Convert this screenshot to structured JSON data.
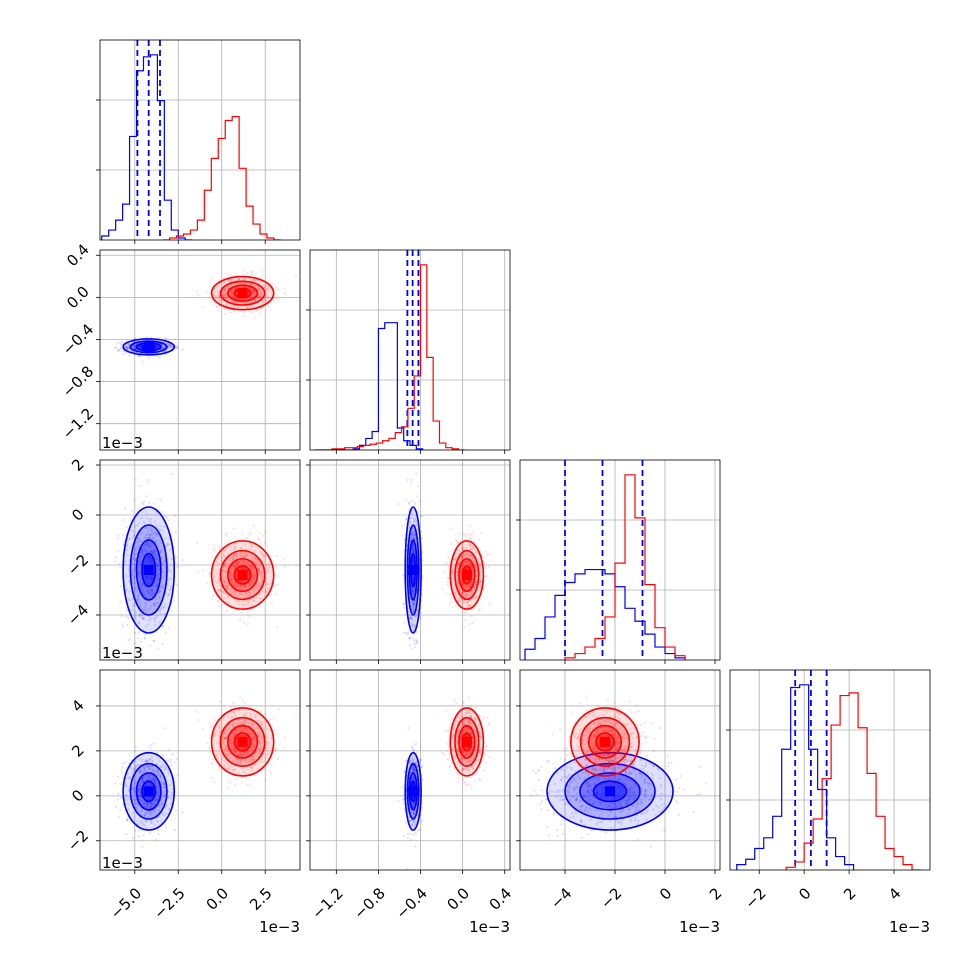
{
  "chart_data": {
    "type": "corner",
    "grid": true,
    "colors": {
      "a": "#0000ff",
      "b": "#ff0000"
    },
    "params": [
      {
        "lim": [
          -0.007,
          0.0045
        ],
        "ticks": [
          {
            "v": -0.005,
            "l": "−5.0"
          },
          {
            "v": -0.0025,
            "l": "−2.5"
          },
          {
            "v": 0.0,
            "l": "0.0"
          },
          {
            "v": 0.0025,
            "l": "2.5"
          }
        ],
        "offset": "1e−3"
      },
      {
        "lim": [
          -0.00145,
          0.00045
        ],
        "ticks": [
          {
            "v": -0.0012,
            "l": "−1.2"
          },
          {
            "v": -0.0008,
            "l": "−0.8"
          },
          {
            "v": -0.0004,
            "l": "−0.4"
          },
          {
            "v": 0.0,
            "l": "0.0"
          },
          {
            "v": 0.0004,
            "l": "0.4"
          }
        ],
        "offset": "1e−3"
      },
      {
        "lim": [
          -0.0058,
          0.0022
        ],
        "ticks": [
          {
            "v": -0.004,
            "l": "−4"
          },
          {
            "v": -0.002,
            "l": "−2"
          },
          {
            "v": 0.0,
            "l": "0"
          },
          {
            "v": 0.002,
            "l": "2"
          }
        ],
        "offset": "1e−3"
      },
      {
        "lim": [
          -0.0033,
          0.0056
        ],
        "ticks": [
          {
            "v": -0.002,
            "l": "−2"
          },
          {
            "v": 0.0,
            "l": "0"
          },
          {
            "v": 0.002,
            "l": "2"
          },
          {
            "v": 0.004,
            "l": "4"
          }
        ],
        "offset": "1e−3"
      }
    ],
    "series": [
      {
        "color": "#0000ff",
        "quantiles": [
          [
            -0.00485,
            -0.0042,
            -0.00355
          ],
          [
            -0.000525,
            -0.000475,
            -0.00042
          ],
          [
            -0.004,
            -0.0025,
            -0.0009
          ],
          [
            -0.0004,
            0.0003,
            0.001
          ]
        ],
        "hist": [
          {
            "x0": -0.0069,
            "dx": 0.0004,
            "counts": [
              0.2,
              0.5,
              1.0,
              1.8,
              5.2,
              8.5,
              9.2,
              9.3,
              7.0,
              2.0,
              0.5,
              0.1,
              0.0
            ]
          },
          {
            "x0": -0.0014,
            "dx": 6e-05,
            "counts": [
              0.0,
              0.0,
              0.0,
              0.0,
              0.0,
              0.0,
              0.1,
              0.4,
              1.0,
              1.6,
              10.5,
              11.0,
              11.0,
              1.9,
              0.8,
              0.4,
              0.1
            ]
          },
          {
            "x0": -0.0056,
            "dx": 0.0004,
            "counts": [
              0.5,
              1.0,
              2.0,
              3.0,
              3.6,
              4.0,
              4.2,
              4.2,
              4.0,
              3.4,
              2.4,
              1.8,
              1.2,
              0.6,
              0.3,
              0.1
            ]
          },
          {
            "x0": -0.003,
            "dx": 0.0004,
            "counts": [
              0.2,
              0.4,
              0.8,
              1.2,
              2.0,
              4.5,
              6.8,
              6.9,
              4.5,
              3.0,
              1.2,
              0.5,
              0.2
            ]
          }
        ],
        "points": [
          {
            "mean": [
              -0.0042,
              -0.00047,
              -0.0022,
              0.0002
            ],
            "sd": [
              0.0007,
              3.6e-05,
              0.0012,
              0.00082
            ]
          }
        ]
      },
      {
        "color": "#ff0000",
        "quantiles": null,
        "hist": [
          {
            "x0": -0.0034,
            "dx": 0.0004,
            "counts": [
              0.0,
              0.1,
              0.2,
              0.3,
              0.5,
              1.0,
              2.5,
              4.1,
              5.1,
              6.0,
              6.2,
              3.6,
              1.7,
              0.8,
              0.3,
              0.1,
              0.0
            ]
          },
          {
            "x0": -0.0013,
            "dx": 6e-05,
            "counts": [
              0.0,
              0.1,
              0.1,
              0.2,
              0.2,
              0.3,
              0.4,
              0.5,
              0.6,
              0.8,
              1.0,
              1.5,
              2.0,
              3.6,
              6.4,
              16.0,
              8.0,
              2.5,
              0.6,
              0.2,
              0.1,
              0.0
            ]
          },
          {
            "x0": -0.004,
            "dx": 0.0004,
            "counts": [
              0.1,
              0.3,
              0.6,
              1.0,
              2.0,
              4.5,
              8.6,
              6.6,
              3.5,
              1.5,
              0.6,
              0.2
            ]
          },
          {
            "x0": -0.0008,
            "dx": 0.0004,
            "counts": [
              0.1,
              0.3,
              1.0,
              1.9,
              3.4,
              5.4,
              6.5,
              6.6,
              5.3,
              3.6,
              2.0,
              0.8,
              0.5,
              0.2,
              0.0
            ]
          }
        ],
        "points": [
          {
            "mean": [
              0.0012,
              4e-05,
              -0.0024,
              0.0024
            ],
            "sd": [
              0.00085,
              7.5e-05,
              0.00065,
              0.00072
            ]
          }
        ]
      }
    ]
  }
}
